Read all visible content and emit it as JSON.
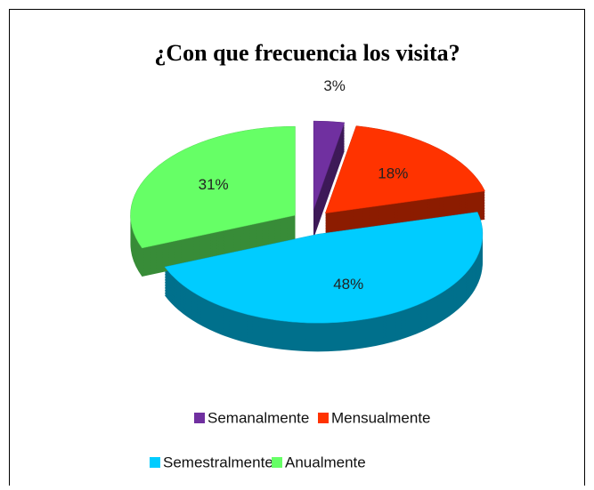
{
  "chart_data": {
    "type": "pie",
    "title": "¿Con que frecuencia los visita?",
    "categories": [
      "Semanalmente",
      "Mensualmente",
      "Semestralmente",
      "Anualmente"
    ],
    "values": [
      3,
      18,
      48,
      31
    ],
    "value_labels": [
      "3%",
      "18%",
      "48%",
      "31%"
    ],
    "colors": [
      "#7030a0",
      "#ff3300",
      "#00ccff",
      "#66ff66"
    ],
    "legend": "bottom"
  }
}
